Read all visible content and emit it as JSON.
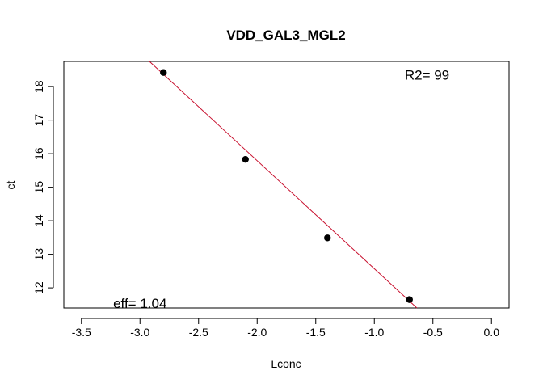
{
  "chart_data": {
    "type": "scatter",
    "title": "VDD_GAL3_MGL2",
    "xlabel": "Lconc",
    "ylabel": "ct",
    "xlim": [
      -3.65,
      0.15
    ],
    "ylim": [
      11.4,
      18.75
    ],
    "x_ticks": [
      -3.5,
      -3.0,
      -2.5,
      -2.0,
      -1.5,
      -1.0,
      -0.5,
      0.0
    ],
    "x_tick_labels": [
      "-3.5",
      "-3.0",
      "-2.5",
      "-2.0",
      "-1.5",
      "-1.0",
      "-0.5",
      "0.0"
    ],
    "y_ticks": [
      12,
      13,
      14,
      15,
      16,
      17,
      18
    ],
    "y_tick_labels": [
      "12",
      "13",
      "14",
      "15",
      "16",
      "17",
      "18"
    ],
    "grid": false,
    "points": [
      {
        "x": -2.8,
        "y": 18.42
      },
      {
        "x": -2.1,
        "y": 15.83
      },
      {
        "x": -1.4,
        "y": 13.49
      },
      {
        "x": -0.7,
        "y": 11.65
      }
    ],
    "fit_line": {
      "slope": -3.22,
      "intercept": 9.35,
      "color": "#c8102e"
    },
    "annotations": [
      {
        "text": "R2= 99",
        "x": -0.55,
        "y": 18.35
      },
      {
        "text": "eff= 1.04",
        "x": -3.0,
        "y": 11.55
      }
    ]
  }
}
